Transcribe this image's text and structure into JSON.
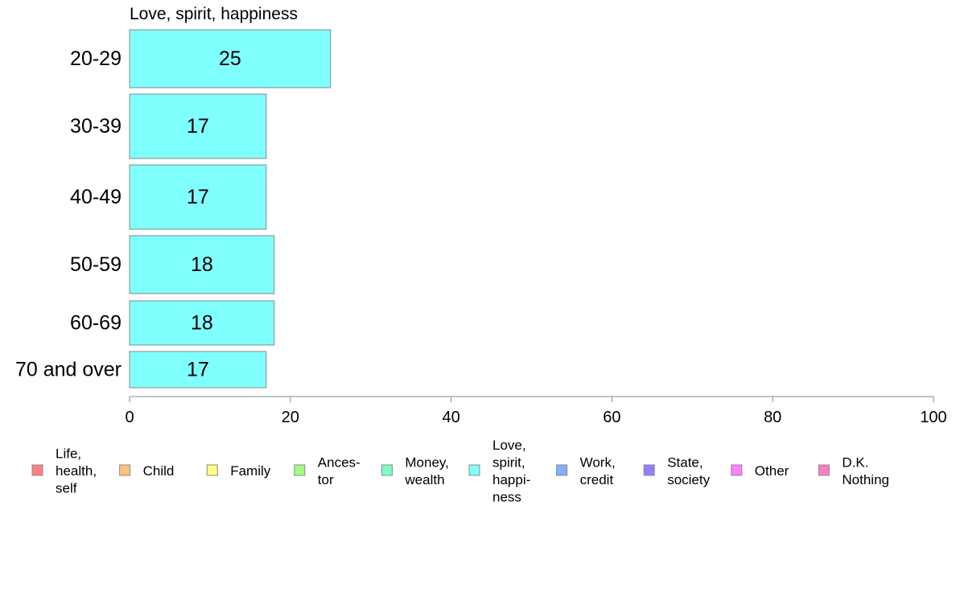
{
  "chart_data": {
    "type": "bar",
    "orientation": "horizontal",
    "title": "Love, spirit, happiness",
    "categories": [
      "20-29",
      "30-39",
      "40-49",
      "50-59",
      "60-69",
      "70 and over"
    ],
    "values": [
      25,
      17,
      17,
      18,
      18,
      17
    ],
    "xlabel": "",
    "ylabel": "",
    "xlim": [
      0,
      100
    ],
    "xticks": [
      "0",
      "20",
      "40",
      "60",
      "80",
      "100"
    ],
    "grid": false,
    "bar_color": "#80FFFF",
    "legend_position": "bottom",
    "legend": [
      {
        "label": "Life,\nhealth,\nself",
        "color": "#FF8080"
      },
      {
        "label": "Child",
        "color": "#FFC080"
      },
      {
        "label": "Family",
        "color": "#FFFF80"
      },
      {
        "label": "Ances-\ntor",
        "color": "#A0FF80"
      },
      {
        "label": "Money,\nwealth",
        "color": "#80FFC0"
      },
      {
        "label": "Love,\nspirit,\nhappi-\nness",
        "color": "#80FFFF"
      },
      {
        "label": "Work,\ncredit",
        "color": "#80B0FF"
      },
      {
        "label": "State,\nsociety",
        "color": "#9080FF"
      },
      {
        "label": "Other",
        "color": "#FF80FF"
      },
      {
        "label": "D.K.\nNothing",
        "color": "#FF80C0"
      }
    ]
  }
}
